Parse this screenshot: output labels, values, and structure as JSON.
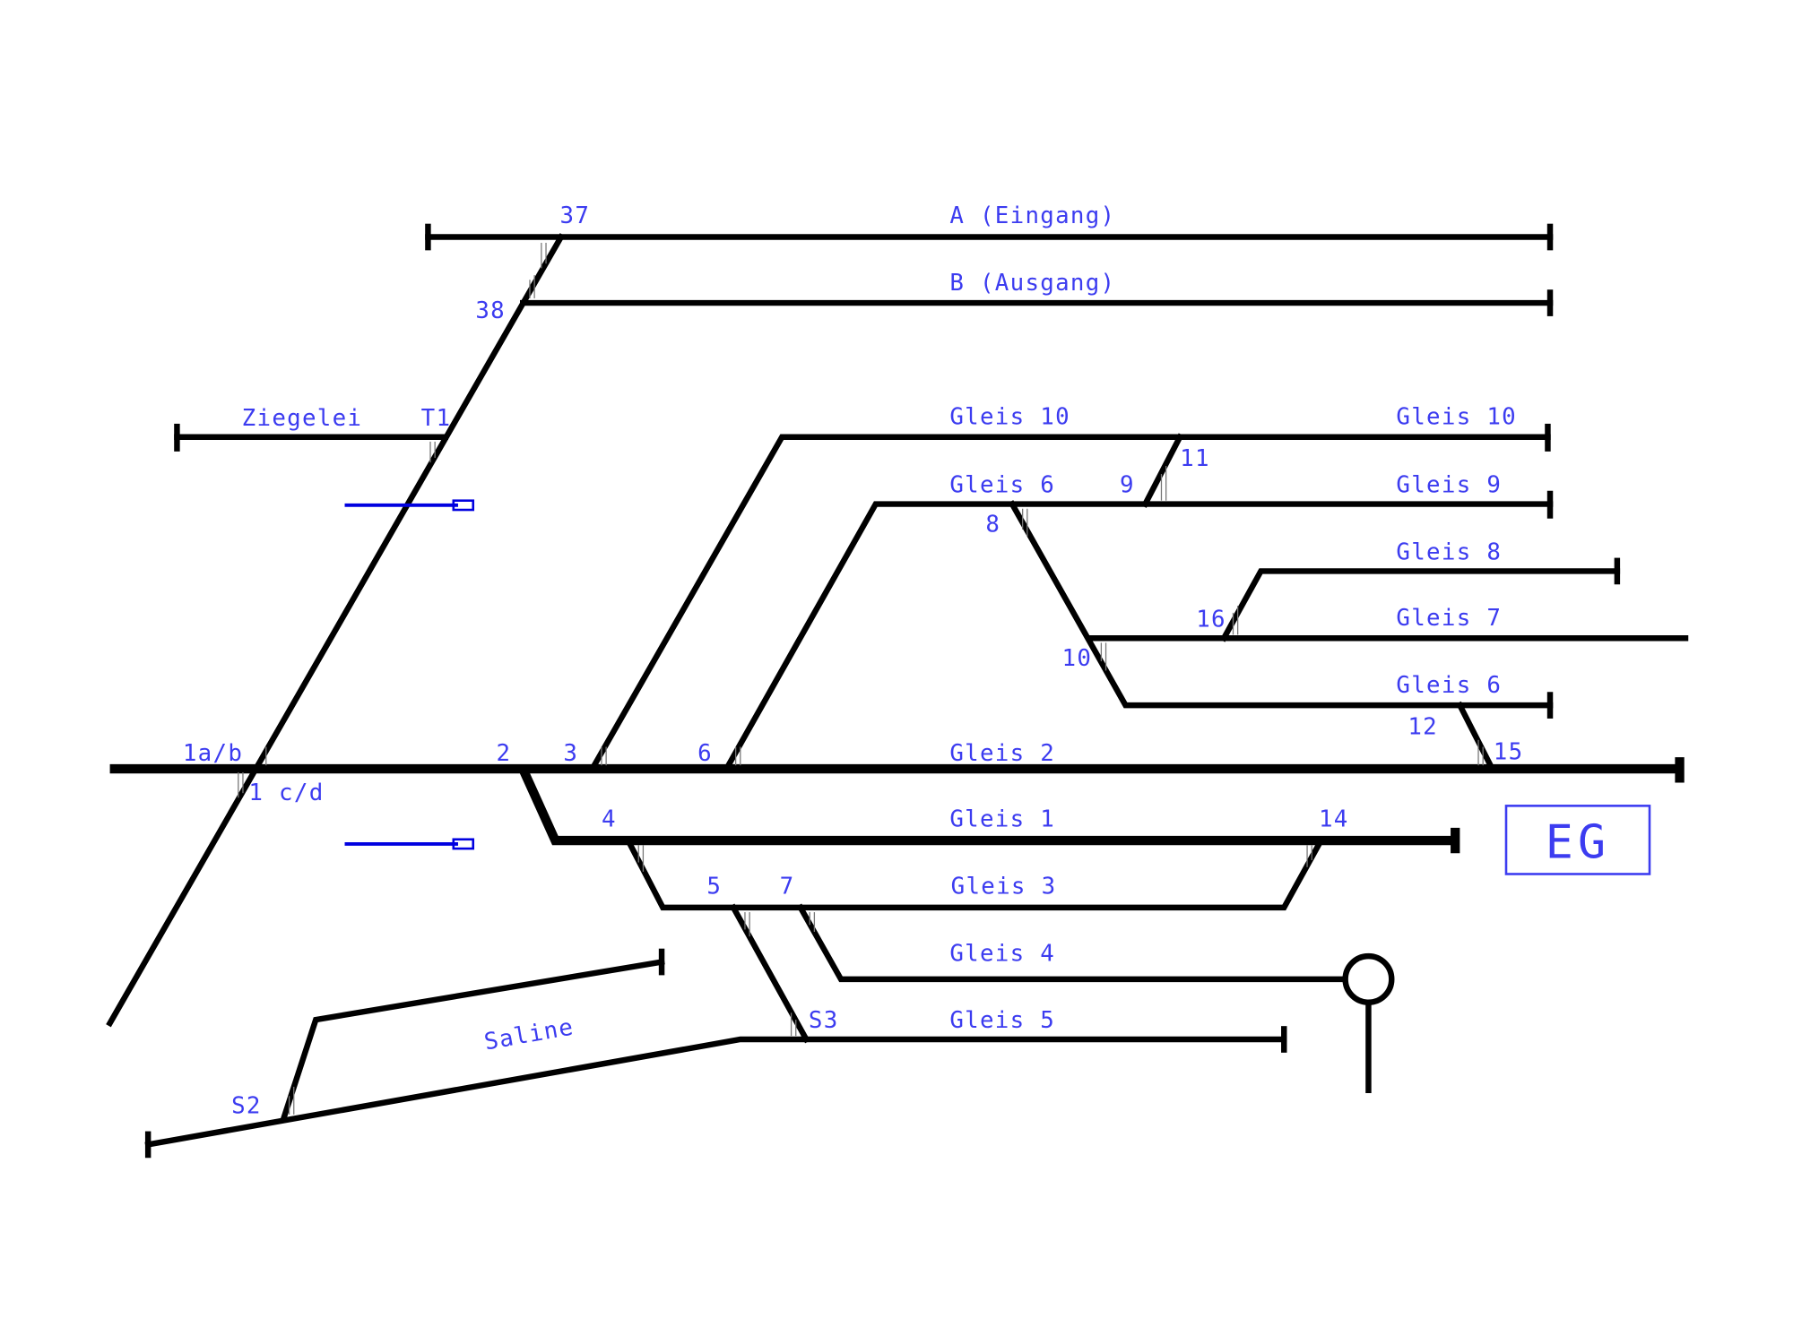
{
  "tracks": [
    "A (Eingang)",
    "B (Ausgang)",
    "Ziegelei",
    "Gleis 10",
    "Gleis 10",
    "Gleis 6",
    "Gleis 9",
    "Gleis 8",
    "Gleis 7",
    "Gleis 6",
    "Gleis 2",
    "Gleis 1",
    "Gleis 3",
    "Gleis 4",
    "Gleis 5",
    "Saline"
  ],
  "switches": [
    "37",
    "38",
    "T1",
    "11",
    "9",
    "8",
    "16",
    "10",
    "12",
    "15",
    "1a/b",
    "2",
    "3",
    "6",
    "1 c/d",
    "4",
    "14",
    "5",
    "7",
    "S3",
    "S2"
  ],
  "station": "EG"
}
